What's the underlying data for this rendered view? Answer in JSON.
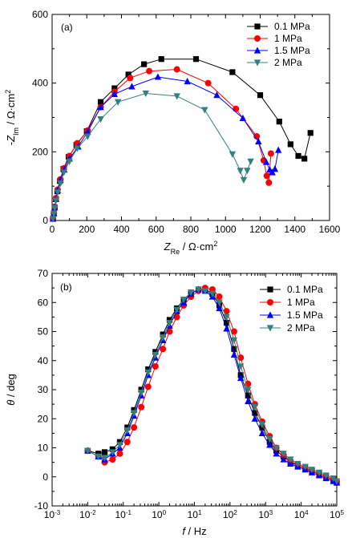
{
  "chart_data": [
    {
      "type": "scatter",
      "panel_label": "(a)",
      "xlabel": {
        "main": "Z",
        "sub": "Re",
        "unit": " / Ω·cm",
        "sup": "2"
      },
      "ylabel": {
        "prefix": "-",
        "main": "Z",
        "sub": "Im",
        "unit": " / Ω·cm",
        "sup": "2"
      },
      "xlim": [
        0,
        1600
      ],
      "ylim": [
        0,
        600
      ],
      "xticks": [
        0,
        200,
        400,
        600,
        800,
        1000,
        1200,
        1400,
        1600
      ],
      "yticks": [
        0,
        200,
        400,
        600
      ],
      "legend_position": "top-right",
      "series": [
        {
          "name": "0.1 MPa",
          "color": "#000000",
          "marker": "square",
          "x": [
            5,
            10,
            15,
            22,
            30,
            45,
            65,
            95,
            140,
            200,
            280,
            360,
            440,
            530,
            630,
            830,
            1040,
            1200,
            1310,
            1375,
            1420,
            1455,
            1490
          ],
          "y": [
            5,
            20,
            38,
            62,
            85,
            115,
            150,
            185,
            220,
            260,
            345,
            385,
            425,
            455,
            470,
            470,
            432,
            365,
            288,
            222,
            188,
            180,
            255
          ]
        },
        {
          "name": "1 MPa",
          "color": "#ff0000",
          "marker": "circle",
          "x": [
            5,
            10,
            15,
            22,
            32,
            48,
            68,
            100,
            145,
            205,
            280,
            360,
            450,
            560,
            720,
            900,
            1060,
            1180,
            1220,
            1238,
            1250,
            1262
          ],
          "y": [
            5,
            22,
            40,
            65,
            90,
            120,
            152,
            188,
            225,
            262,
            330,
            375,
            415,
            435,
            440,
            400,
            325,
            245,
            175,
            130,
            110,
            195
          ]
        },
        {
          "name": "1.5 MPa",
          "color": "#0000ff",
          "marker": "triangle-up",
          "x": [
            5,
            10,
            15,
            22,
            32,
            48,
            70,
            100,
            150,
            205,
            280,
            360,
            460,
            610,
            780,
            950,
            1100,
            1190,
            1235,
            1255,
            1270,
            1285,
            1305
          ],
          "y": [
            5,
            20,
            38,
            62,
            88,
            118,
            148,
            180,
            215,
            258,
            330,
            368,
            390,
            418,
            405,
            365,
            298,
            230,
            170,
            148,
            140,
            150,
            205
          ]
        },
        {
          "name": "2 MPa",
          "color": "#338080",
          "marker": "triangle-down",
          "x": [
            5,
            10,
            15,
            22,
            32,
            48,
            68,
            100,
            145,
            205,
            280,
            380,
            540,
            720,
            880,
            1040,
            1085,
            1105,
            1125,
            1145
          ],
          "y": [
            5,
            20,
            36,
            58,
            82,
            108,
            140,
            172,
            210,
            245,
            295,
            345,
            370,
            362,
            322,
            193,
            145,
            118,
            145,
            172
          ]
        }
      ]
    },
    {
      "type": "line",
      "panel_label": "(b)",
      "xlabel": {
        "main": "f",
        "unit": " / Hz"
      },
      "ylabel": {
        "main": "θ",
        "unit": " / deg"
      },
      "xscale": "log",
      "xlim": [
        0.001,
        100000
      ],
      "ylim": [
        -10,
        70
      ],
      "xticks": [
        0.001,
        0.01,
        0.1,
        1,
        10,
        100,
        1000,
        10000,
        100000
      ],
      "xtick_labels": [
        [
          "10",
          "-3"
        ],
        [
          "10",
          "-2"
        ],
        [
          "10",
          "-1"
        ],
        [
          "10",
          "0"
        ],
        [
          "10",
          "1"
        ],
        [
          "10",
          "2"
        ],
        [
          "10",
          "3"
        ],
        [
          "10",
          "4"
        ],
        [
          "10",
          "5"
        ]
      ],
      "yticks": [
        -10,
        0,
        10,
        20,
        30,
        40,
        50,
        60,
        70
      ],
      "legend_position": "top-right",
      "series": [
        {
          "name": "0.1 MPa",
          "color": "#000000",
          "marker": "square",
          "x": [
            0.01,
            0.02,
            0.03,
            0.05,
            0.08,
            0.13,
            0.2,
            0.32,
            0.5,
            0.8,
            1.3,
            2,
            3.2,
            5,
            8,
            13,
            20,
            32,
            50,
            80,
            130,
            200,
            320,
            500,
            800,
            1300,
            2000,
            3200,
            5000,
            8000,
            13000,
            20000,
            32000,
            50000,
            80000,
            100000
          ],
          "y": [
            9,
            8,
            8.5,
            9.5,
            12,
            17,
            23,
            30,
            37,
            43,
            49,
            54,
            58,
            61,
            63,
            64.5,
            64.5,
            63,
            59,
            53,
            44,
            35,
            28,
            22,
            17,
            12,
            9,
            7,
            5,
            4,
            3,
            2,
            1,
            0,
            -1,
            -2
          ]
        },
        {
          "name": "1 MPa",
          "color": "#ff0000",
          "marker": "circle",
          "x": [
            0.01,
            0.02,
            0.03,
            0.05,
            0.08,
            0.13,
            0.2,
            0.32,
            0.5,
            0.8,
            1.3,
            2,
            3.2,
            5,
            8,
            13,
            20,
            32,
            50,
            80,
            130,
            200,
            320,
            500,
            800,
            1300,
            2000,
            3200,
            5000,
            8000,
            13000,
            20000,
            32000,
            50000,
            80000,
            100000
          ],
          "y": [
            9,
            7,
            5,
            6,
            8,
            12,
            17,
            24,
            31,
            38,
            44,
            50,
            55,
            59,
            62,
            64,
            65,
            64.5,
            62,
            57,
            50,
            41,
            32,
            25,
            19,
            14,
            10,
            7.5,
            5.5,
            4,
            3,
            2,
            1,
            0,
            -1,
            -1.5
          ]
        },
        {
          "name": "1.5 MPa",
          "color": "#0000ff",
          "marker": "triangle-up",
          "x": [
            0.01,
            0.02,
            0.03,
            0.05,
            0.08,
            0.13,
            0.2,
            0.32,
            0.5,
            0.8,
            1.3,
            2,
            3.2,
            5,
            8,
            13,
            20,
            32,
            50,
            80,
            130,
            200,
            320,
            500,
            800,
            1300,
            2000,
            3200,
            5000,
            8000,
            13000,
            20000,
            32000,
            50000,
            80000,
            100000
          ],
          "y": [
            9,
            7,
            6,
            8,
            10,
            15,
            21,
            28,
            35,
            41,
            47,
            52,
            57,
            60,
            63,
            64.5,
            64,
            62,
            58,
            51,
            42,
            34,
            26,
            20,
            15,
            11,
            8,
            6,
            4.5,
            3.5,
            2.5,
            1.5,
            0.5,
            -0.5,
            -1.5,
            -2
          ]
        },
        {
          "name": "2 MPa",
          "color": "#338080",
          "marker": "triangle-down",
          "x": [
            0.01,
            0.02,
            0.03,
            0.05,
            0.08,
            0.13,
            0.2,
            0.32,
            0.5,
            0.8,
            1.3,
            2,
            3.2,
            5,
            8,
            13,
            20,
            32,
            50,
            80,
            130,
            200,
            320,
            500,
            800,
            1300,
            2000,
            3200,
            5000,
            8000,
            13000,
            20000,
            32000,
            50000,
            80000,
            100000
          ],
          "y": [
            9,
            7,
            6.5,
            8.5,
            11,
            16,
            22,
            29,
            36,
            42,
            48,
            53,
            57.5,
            61,
            63.5,
            64.5,
            64,
            63,
            60,
            55,
            47,
            38,
            30,
            24,
            18,
            13,
            10,
            8,
            6,
            4.5,
            3.5,
            2.5,
            1.5,
            0.5,
            -0.5,
            -1.5
          ]
        }
      ]
    }
  ]
}
